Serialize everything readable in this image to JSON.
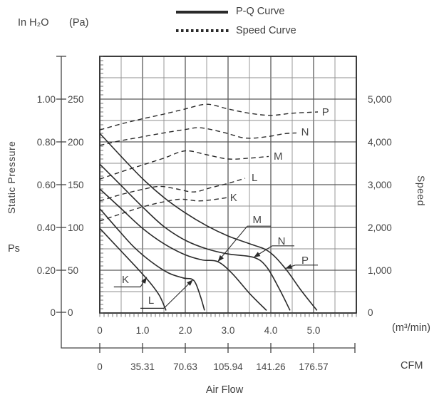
{
  "header": {
    "pressure_unit_primary": "In H₂O",
    "pressure_unit_secondary": "(Pa)",
    "legend": [
      {
        "label": "P-Q Curve",
        "style": "solid"
      },
      {
        "label": "Speed Curve",
        "style": "dotted"
      }
    ]
  },
  "axes": {
    "left_title": "Static Pressure",
    "left_symbol": "Ps",
    "right_title": "Speed",
    "bottom_title": "Air Flow",
    "bottom_unit_primary": "(m³/min)",
    "bottom_unit_secondary": "CFM"
  },
  "chart_data": {
    "type": "line",
    "title": "Fan P-Q and Speed performance curves",
    "x_axis": {
      "label": "Air Flow",
      "ticks_m3min": [
        "0",
        "1.0",
        "2.0",
        "3.0",
        "4.0",
        "5.0"
      ],
      "tick_values_m3min": [
        0,
        1,
        2,
        3,
        4,
        5
      ],
      "ticks_cfm": [
        "0",
        "35.31",
        "70.63",
        "105.94",
        "141.26",
        "176.57"
      ],
      "xlim_m3min": [
        0,
        6
      ],
      "grid_step_m3min": 0.5
    },
    "y_axis_pressure": {
      "label": "Static Pressure (Ps)",
      "ticks_inh2o": [
        "1.00",
        "0.80",
        "0.60",
        "0.40",
        "0.20",
        "0"
      ],
      "ticks_pa": [
        "250",
        "200",
        "150",
        "100",
        "50",
        "0"
      ],
      "tick_values_pa": [
        250,
        200,
        150,
        100,
        50,
        0
      ],
      "ylim_pa": [
        0,
        300
      ],
      "grid_step_pa": 25
    },
    "y_axis_speed": {
      "label": "Speed",
      "ticks_rpm": [
        "5,000",
        "4,000",
        "3,000",
        "2,000",
        "1,000",
        "0"
      ],
      "tick_values_rpm": [
        5000,
        4000,
        3000,
        2000,
        1000,
        0
      ],
      "ylim_rpm": [
        0,
        6000
      ]
    },
    "pq_curves": [
      {
        "name": "K",
        "points_m3min_pa": [
          [
            0,
            99
          ],
          [
            0.3,
            83
          ],
          [
            0.6,
            67
          ],
          [
            0.9,
            51
          ],
          [
            1.2,
            34
          ],
          [
            1.4,
            20
          ],
          [
            1.55,
            3
          ]
        ]
      },
      {
        "name": "L",
        "points_m3min_pa": [
          [
            0,
            122
          ],
          [
            0.4,
            99
          ],
          [
            0.8,
            77
          ],
          [
            1.2,
            60
          ],
          [
            1.6,
            47
          ],
          [
            1.95,
            41
          ],
          [
            2.2,
            38
          ],
          [
            2.35,
            20
          ],
          [
            2.45,
            3
          ]
        ]
      },
      {
        "name": "M",
        "points_m3min_pa": [
          [
            0,
            145
          ],
          [
            0.5,
            122
          ],
          [
            1.0,
            99
          ],
          [
            1.5,
            81
          ],
          [
            2.0,
            68
          ],
          [
            2.4,
            62
          ],
          [
            2.76,
            60
          ],
          [
            3.1,
            46
          ],
          [
            3.5,
            23
          ],
          [
            3.9,
            3
          ]
        ]
      },
      {
        "name": "N",
        "points_m3min_pa": [
          [
            0,
            174
          ],
          [
            0.5,
            149
          ],
          [
            1.0,
            124
          ],
          [
            1.5,
            101
          ],
          [
            2.0,
            85
          ],
          [
            2.5,
            75
          ],
          [
            3.0,
            69
          ],
          [
            3.6,
            65
          ],
          [
            3.9,
            54
          ],
          [
            4.2,
            28
          ],
          [
            4.45,
            3
          ]
        ]
      },
      {
        "name": "P",
        "points_m3min_pa": [
          [
            0,
            210
          ],
          [
            0.5,
            183
          ],
          [
            1.0,
            157
          ],
          [
            1.5,
            135
          ],
          [
            2.0,
            117
          ],
          [
            2.5,
            102
          ],
          [
            3.0,
            90
          ],
          [
            3.5,
            81
          ],
          [
            3.95,
            72
          ],
          [
            4.34,
            52
          ],
          [
            4.7,
            27
          ],
          [
            5.08,
            3
          ]
        ]
      }
    ],
    "speed_curves": [
      {
        "name": "K",
        "points_m3min_rpm": [
          [
            0,
            2150
          ],
          [
            0.5,
            2320
          ],
          [
            1.0,
            2480
          ],
          [
            1.5,
            2600
          ],
          [
            1.9,
            2660
          ],
          [
            2.3,
            2620
          ],
          [
            2.65,
            2650
          ],
          [
            3.0,
            2700
          ]
        ],
        "label_at": [
          3.13,
          2700
        ]
      },
      {
        "name": "L",
        "points_m3min_rpm": [
          [
            0,
            2620
          ],
          [
            0.5,
            2770
          ],
          [
            1.0,
            2890
          ],
          [
            1.4,
            2960
          ],
          [
            1.8,
            2900
          ],
          [
            2.2,
            2830
          ],
          [
            2.6,
            2930
          ],
          [
            3.0,
            3030
          ],
          [
            3.4,
            3150
          ]
        ],
        "label_at": [
          3.62,
          3170
        ]
      },
      {
        "name": "M",
        "points_m3min_rpm": [
          [
            0,
            3130
          ],
          [
            0.5,
            3300
          ],
          [
            1.0,
            3460
          ],
          [
            1.5,
            3620
          ],
          [
            2.0,
            3790
          ],
          [
            2.5,
            3700
          ],
          [
            3.0,
            3600
          ],
          [
            3.5,
            3620
          ],
          [
            3.95,
            3660
          ]
        ],
        "label_at": [
          4.17,
          3670
        ]
      },
      {
        "name": "N",
        "points_m3min_rpm": [
          [
            0,
            3920
          ],
          [
            0.5,
            4030
          ],
          [
            1.0,
            4120
          ],
          [
            1.5,
            4210
          ],
          [
            2.0,
            4290
          ],
          [
            2.35,
            4330
          ],
          [
            2.9,
            4220
          ],
          [
            3.4,
            4090
          ],
          [
            3.9,
            4120
          ],
          [
            4.3,
            4190
          ],
          [
            4.6,
            4210
          ]
        ],
        "label_at": [
          4.8,
          4230
        ]
      },
      {
        "name": "P",
        "points_m3min_rpm": [
          [
            0,
            4280
          ],
          [
            0.5,
            4420
          ],
          [
            1.0,
            4540
          ],
          [
            1.5,
            4650
          ],
          [
            2.0,
            4770
          ],
          [
            2.5,
            4880
          ],
          [
            3.0,
            4770
          ],
          [
            3.5,
            4670
          ],
          [
            4.0,
            4620
          ],
          [
            4.5,
            4670
          ],
          [
            5.1,
            4700
          ]
        ],
        "label_at": [
          5.28,
          4700
        ]
      }
    ],
    "pq_callouts": [
      {
        "name": "K",
        "text_at_m3min_pa": [
          0.6,
          35
        ],
        "underline_x1_x2_y": [
          0.33,
          0.95,
          30.5
        ],
        "leader_from_to": [
          [
            0.95,
            30.5
          ],
          [
            1.1,
            42
          ]
        ]
      },
      {
        "name": "L",
        "text_at_m3min_pa": [
          1.2,
          11
        ],
        "underline_x1_x2_y": [
          0.95,
          1.5,
          5.5
        ],
        "leader_from_to": [
          [
            1.5,
            5.5
          ],
          [
            2.18,
            39
          ]
        ]
      },
      {
        "name": "M",
        "text_at_m3min_pa": [
          3.68,
          105
        ],
        "underline_x1_x2_y": [
          3.45,
          4.0,
          101.5
        ],
        "leader_from_to": [
          [
            3.45,
            101.5
          ],
          [
            2.76,
            60
          ]
        ]
      },
      {
        "name": "N",
        "text_at_m3min_pa": [
          4.25,
          80
        ],
        "underline_x1_x2_y": [
          4.03,
          4.55,
          78.5
        ],
        "leader_from_to": [
          [
            4.03,
            78.5
          ],
          [
            3.6,
            65
          ]
        ]
      },
      {
        "name": "P",
        "text_at_m3min_pa": [
          4.8,
          57.5
        ],
        "underline_x1_x2_y": [
          4.57,
          5.1,
          56
        ],
        "leader_from_to": [
          [
            4.57,
            56
          ],
          [
            4.34,
            52
          ]
        ]
      }
    ]
  }
}
